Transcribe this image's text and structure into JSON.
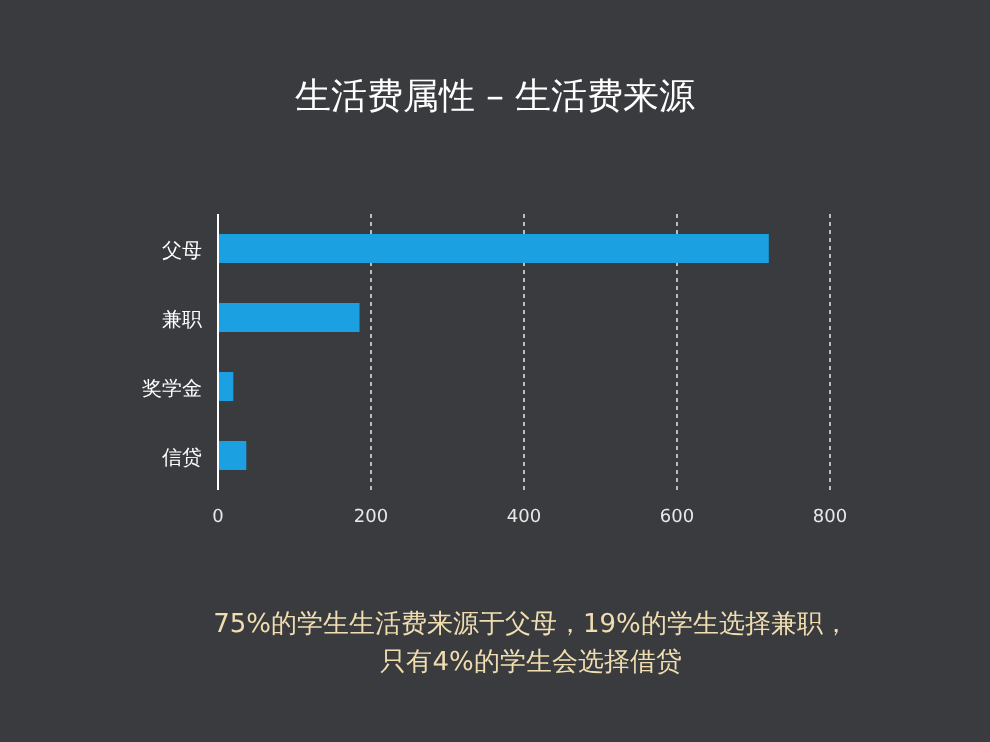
{
  "chart_data": {
    "type": "bar",
    "orientation": "horizontal",
    "title": "生活费属性 – 生活费来源",
    "categories": [
      "父母",
      "兼职",
      "奖学金",
      "信贷"
    ],
    "values": [
      720,
      185,
      20,
      37
    ],
    "color": "#1ba1e2",
    "xlim": [
      0,
      800
    ],
    "xticks": [
      0,
      200,
      400,
      600,
      800
    ],
    "grid": "x",
    "annotations": [
      "75%的学生生活费来源于父母，19%的学生选择兼职，",
      "只有4%的学生会选择借贷"
    ]
  }
}
